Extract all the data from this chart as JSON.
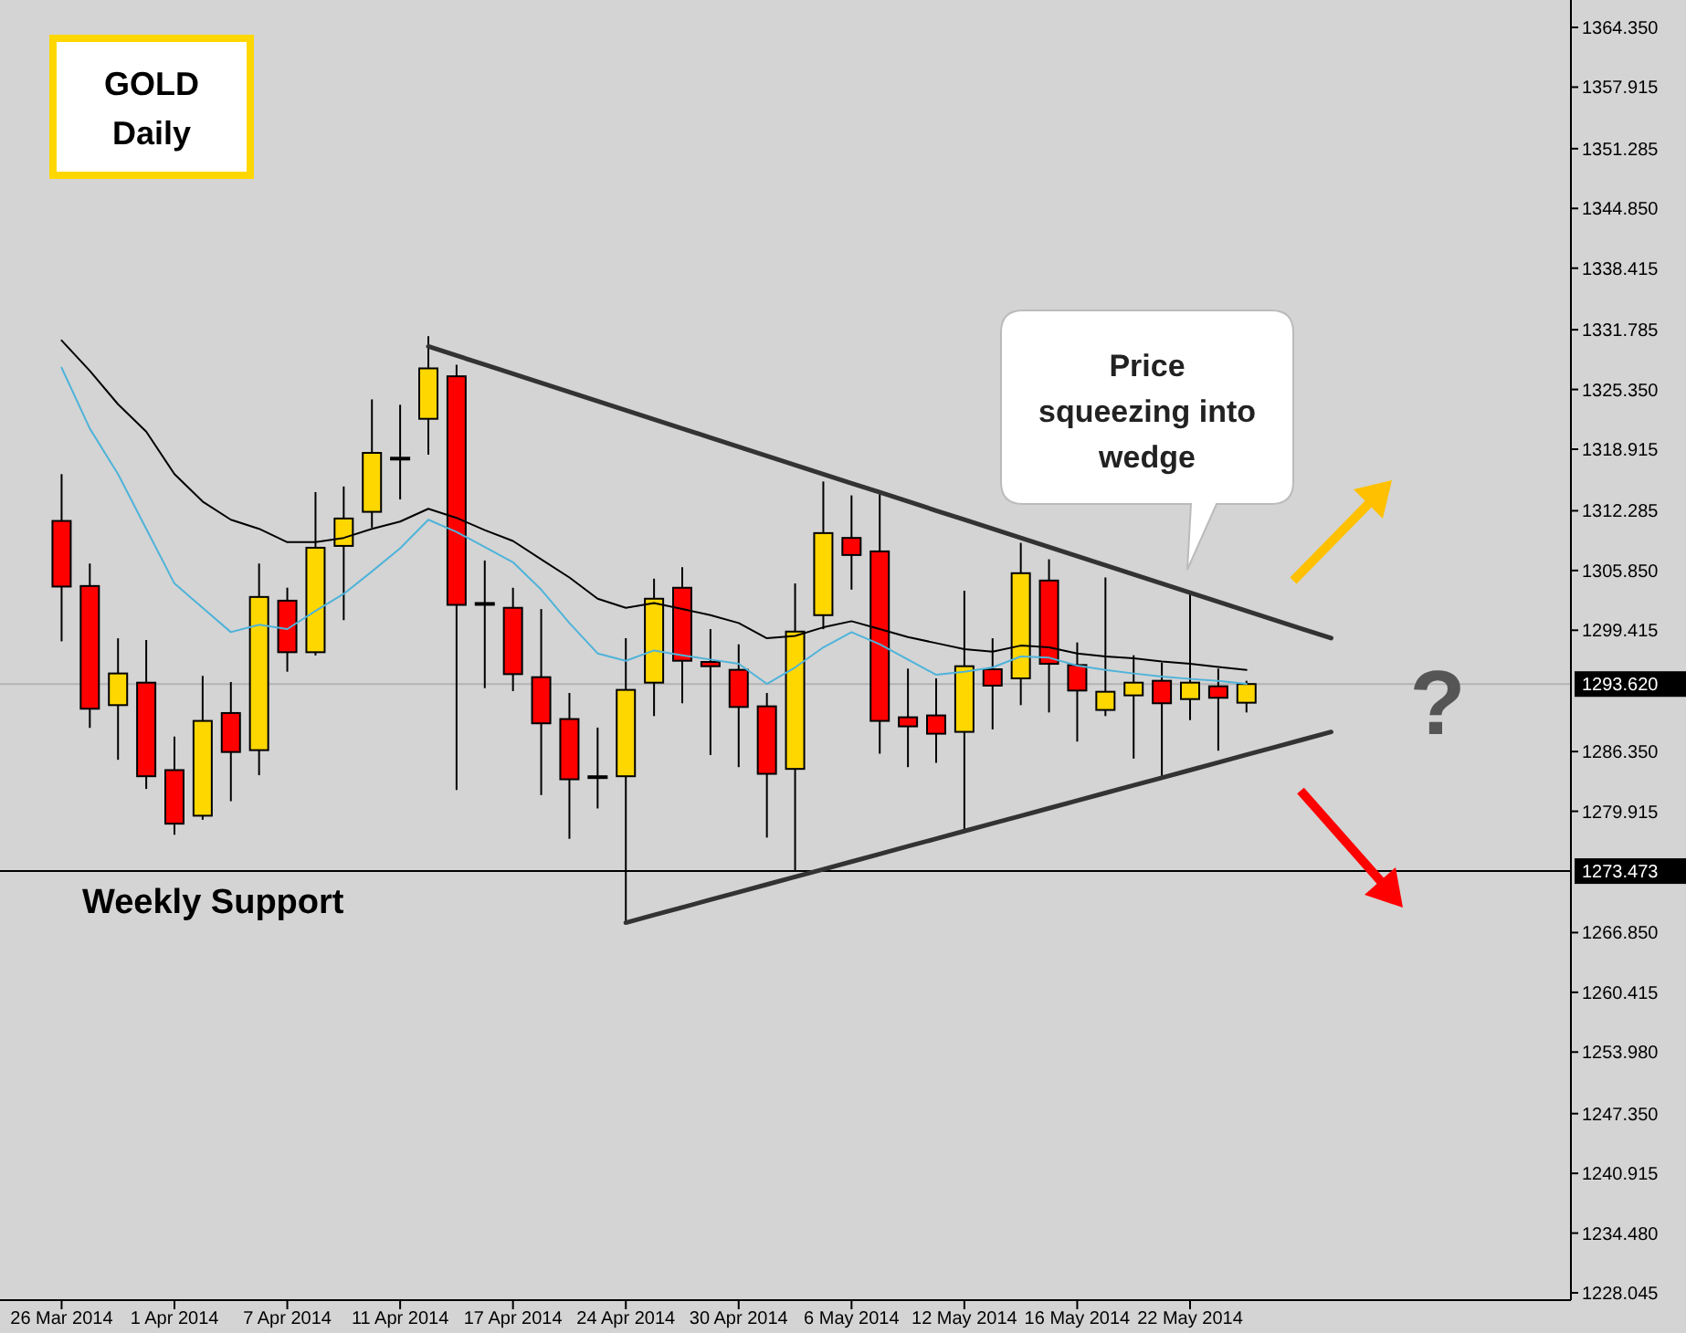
{
  "chart_data": {
    "type": "candlestick",
    "title": "GOLD",
    "subtitle": "Daily",
    "categories": [
      "26 Mar 2014",
      null,
      null,
      null,
      "1 Apr 2014",
      null,
      null,
      null,
      "7 Apr 2014",
      null,
      null,
      null,
      "11 Apr 2014",
      null,
      null,
      null,
      "17 Apr 2014",
      null,
      null,
      null,
      "24 Apr 2014",
      null,
      null,
      null,
      "30 Apr 2014",
      null,
      null,
      null,
      "6 May 2014",
      null,
      null,
      null,
      "12 May 2014",
      null,
      null,
      null,
      "16 May 2014",
      null,
      null,
      null,
      "22 May 2014",
      null,
      null,
      null,
      null,
      null,
      null,
      null,
      null,
      null,
      null,
      null,
      null,
      null
    ],
    "ohlc": [
      [
        1311.19,
        1316.23,
        1298.22,
        1304.12
      ],
      [
        1304.18,
        1306.6,
        1288.9,
        1290.96
      ],
      [
        1291.35,
        1298.55,
        1285.46,
        1294.76
      ],
      [
        1293.77,
        1298.36,
        1282.32,
        1283.69
      ],
      [
        1284.35,
        1287.95,
        1277.4,
        1278.58
      ],
      [
        1279.44,
        1294.5,
        1279.0,
        1289.65
      ],
      [
        1290.5,
        1293.84,
        1281.0,
        1286.3
      ],
      [
        1286.5,
        1306.6,
        1283.8,
        1303.0
      ],
      [
        1302.6,
        1304.0,
        1294.95,
        1297.05
      ],
      [
        1297.05,
        1314.3,
        1296.7,
        1308.3
      ],
      [
        1308.5,
        1314.9,
        1300.5,
        1311.45
      ],
      [
        1312.17,
        1324.28,
        1310.47,
        1318.52
      ],
      [
        1318.0,
        1323.7,
        1313.5,
        1318.0
      ],
      [
        1322.19,
        1331.09,
        1318.32,
        1327.62
      ],
      [
        1326.77,
        1328.0,
        1282.2,
        1302.15
      ],
      [
        1302.35,
        1306.93,
        1293.18,
        1302.35
      ],
      [
        1301.83,
        1303.99,
        1292.86,
        1294.69
      ],
      [
        1294.36,
        1301.7,
        1281.66,
        1289.39
      ],
      [
        1289.85,
        1292.66,
        1276.95,
        1283.36
      ],
      [
        1283.69,
        1288.93,
        1280.22,
        1283.69
      ],
      [
        1283.69,
        1298.55,
        1267.9,
        1292.99
      ],
      [
        1293.77,
        1304.97,
        1290.17,
        1302.81
      ],
      [
        1303.99,
        1306.21,
        1291.55,
        1296.13
      ],
      [
        1296.0,
        1299.54,
        1285.98,
        1295.54
      ],
      [
        1295.15,
        1297.9,
        1284.67,
        1291.15
      ],
      [
        1291.22,
        1292.66,
        1277.08,
        1283.95
      ],
      [
        1284.48,
        1304.45,
        1273.4,
        1299.27
      ],
      [
        1301.04,
        1315.44,
        1299.53,
        1309.88
      ],
      [
        1309.36,
        1313.94,
        1303.79,
        1307.52
      ],
      [
        1307.91,
        1314.07,
        1286.11,
        1289.65
      ],
      [
        1290.04,
        1295.28,
        1284.67,
        1289.06
      ],
      [
        1290.24,
        1294.23,
        1285.13,
        1288.27
      ],
      [
        1288.47,
        1303.66,
        1277.73,
        1295.54
      ],
      [
        1295.21,
        1298.55,
        1288.73,
        1293.45
      ],
      [
        1294.23,
        1308.83,
        1291.35,
        1305.56
      ],
      [
        1304.77,
        1307.06,
        1290.56,
        1295.8
      ],
      [
        1295.67,
        1298.1,
        1287.42,
        1292.92
      ],
      [
        1290.83,
        1305.1,
        1290.17,
        1292.79
      ],
      [
        1292.4,
        1296.72,
        1285.59,
        1293.77
      ],
      [
        1293.97,
        1295.93,
        1283.5,
        1291.55
      ],
      [
        1292.0,
        1303.33,
        1289.72,
        1293.77
      ],
      [
        1293.38,
        1295.28,
        1286.44,
        1292.14
      ],
      [
        1291.61,
        1293.97,
        1290.56,
        1293.62
      ],
      null,
      null,
      null,
      null,
      null,
      null,
      null,
      null,
      null,
      null,
      null
    ],
    "colors": [
      "#ff0000",
      "#ff0000",
      "#ffd700",
      "#ff0000",
      "#ff0000",
      "#ffd700",
      "#ff0000",
      "#ffd700",
      "#ff0000",
      "#ffd700",
      "#ffd700",
      "#ffd700",
      "#ffd700",
      "#ffd700",
      "#ff0000",
      "#ffd700",
      "#ff0000",
      "#ff0000",
      "#ff0000",
      "#ffd700",
      "#ffd700",
      "#ffd700",
      "#ff0000",
      "#ff0000",
      "#ff0000",
      "#ff0000",
      "#ffd700",
      "#ffd700",
      "#ff0000",
      "#ff0000",
      "#ff0000",
      "#ff0000",
      "#ffd700",
      "#ff0000",
      "#ffd700",
      "#ff0000",
      "#ff0000",
      "#ffd700",
      "#ffd700",
      "#ff0000",
      "#ffd700",
      "#ff0000",
      "#ffd700",
      null,
      null,
      null,
      null,
      null,
      null,
      null,
      null,
      null,
      null,
      null
    ],
    "series": [
      {
        "type": "line",
        "color": "#000000",
        "values": [
          1330.63,
          1327.36,
          1323.76,
          1320.81,
          1316.23,
          1313.28,
          1311.32,
          1310.34,
          1308.9,
          1308.9,
          1309.36,
          1310.34,
          1311.12,
          1312.5,
          1311.52,
          1310.2,
          1309.03,
          1307.06,
          1305.1,
          1302.81,
          1301.83,
          1302.35,
          1301.7,
          1301.04,
          1300.19,
          1298.55,
          1298.81,
          1299.73,
          1300.39,
          1299.54,
          1298.68,
          1298.03,
          1297.37,
          1297.11,
          1297.76,
          1297.57,
          1296.92,
          1296.59,
          1296.39,
          1296.06,
          1295.8,
          1295.47,
          1295.15,
          null,
          null,
          null,
          null,
          null,
          null,
          null,
          null,
          null,
          null,
          null
        ]
      },
      {
        "type": "line",
        "color": "#4fb3d9",
        "values": [
          1327.69,
          1321.14,
          1316.23,
          1310.34,
          1304.45,
          1301.83,
          1299.21,
          1300.0,
          1299.54,
          1301.5,
          1303.33,
          1305.75,
          1308.24,
          1311.32,
          1310.01,
          1308.37,
          1306.74,
          1303.79,
          1300.19,
          1296.92,
          1296.13,
          1297.24,
          1296.72,
          1296.26,
          1295.8,
          1293.64,
          1295.41,
          1297.57,
          1299.21,
          1297.9,
          1296.26,
          1294.62,
          1294.95,
          1295.41,
          1296.59,
          1296.46,
          1295.61,
          1295.15,
          1294.76,
          1294.43,
          1294.17,
          1293.97,
          1293.64,
          null,
          null,
          null,
          null,
          null,
          null,
          null,
          null,
          null,
          null,
          null
        ]
      },
      {
        "type": "line",
        "color": "#333333",
        "values": [
          null,
          null,
          null,
          null,
          null,
          null,
          null,
          null,
          null,
          null,
          null,
          null,
          null,
          1329.98,
          1329.0,
          1328.02,
          1327.03,
          1326.05,
          1325.07,
          1324.09,
          1323.11,
          1322.12,
          1321.14,
          1320.16,
          1319.18,
          1318.2,
          1317.21,
          1316.23,
          1315.25,
          1314.27,
          1313.29,
          1312.3,
          1311.32,
          1310.34,
          1309.36,
          1308.38,
          1307.39,
          1306.41,
          1305.43,
          1304.45,
          1303.47,
          1302.48,
          1301.5,
          1300.52,
          1299.54,
          1298.56,
          null,
          null,
          null,
          null,
          null,
          null,
          null,
          null
        ]
      },
      {
        "type": "line",
        "color": "#333333",
        "values": [
          null,
          null,
          null,
          null,
          null,
          null,
          null,
          null,
          null,
          null,
          null,
          null,
          null,
          null,
          null,
          null,
          null,
          null,
          null,
          null,
          1267.92,
          1268.74,
          1269.56,
          1270.39,
          1271.21,
          1272.03,
          1272.85,
          1273.67,
          1274.49,
          1275.31,
          1276.14,
          1276.96,
          1277.78,
          1278.6,
          1279.42,
          1280.24,
          1281.07,
          1281.89,
          1282.71,
          1283.53,
          1284.35,
          1285.17,
          1286.0,
          1286.82,
          1287.64,
          1288.46,
          null,
          null,
          null,
          null,
          null,
          null,
          null,
          null
        ]
      }
    ],
    "ylim": [
      1227.26,
      1367.3
    ],
    "yticks": [
      {
        "value": 1364.35,
        "label": "1364.350"
      },
      {
        "value": 1357.915,
        "label": "1357.915"
      },
      {
        "value": 1351.285,
        "label": "1351.285"
      },
      {
        "value": 1344.85,
        "label": "1344.850"
      },
      {
        "value": 1338.415,
        "label": "1338.415"
      },
      {
        "value": 1331.785,
        "label": "1331.785"
      },
      {
        "value": 1325.35,
        "label": "1325.350"
      },
      {
        "value": 1318.915,
        "label": "1318.915"
      },
      {
        "value": 1312.285,
        "label": "1312.285"
      },
      {
        "value": 1305.85,
        "label": "1305.850"
      },
      {
        "value": 1299.415,
        "label": "1299.415"
      },
      {
        "value": 1286.35,
        "label": "1286.350"
      },
      {
        "value": 1279.915,
        "label": "1279.915"
      },
      {
        "value": 1266.85,
        "label": "1266.850"
      },
      {
        "value": 1260.415,
        "label": "1260.415"
      },
      {
        "value": 1253.98,
        "label": "1253.980"
      },
      {
        "value": 1247.35,
        "label": "1247.350"
      },
      {
        "value": 1240.915,
        "label": "1240.915"
      },
      {
        "value": 1234.48,
        "label": "1234.480"
      },
      {
        "value": 1228.045,
        "label": "1228.045"
      }
    ],
    "ref_lines": [
      {
        "axis": "y",
        "value": 1293.62,
        "label": "1293.620",
        "color": "#b4b4b4"
      },
      {
        "axis": "y",
        "value": 1273.473,
        "label": "1273.473",
        "color": "#000000"
      }
    ],
    "annotations": [
      {
        "text": "Weekly Support",
        "y": 1273.473
      },
      "Price squeezing into wedge",
      "?"
    ],
    "tick_labels": true,
    "grid": false
  }
}
